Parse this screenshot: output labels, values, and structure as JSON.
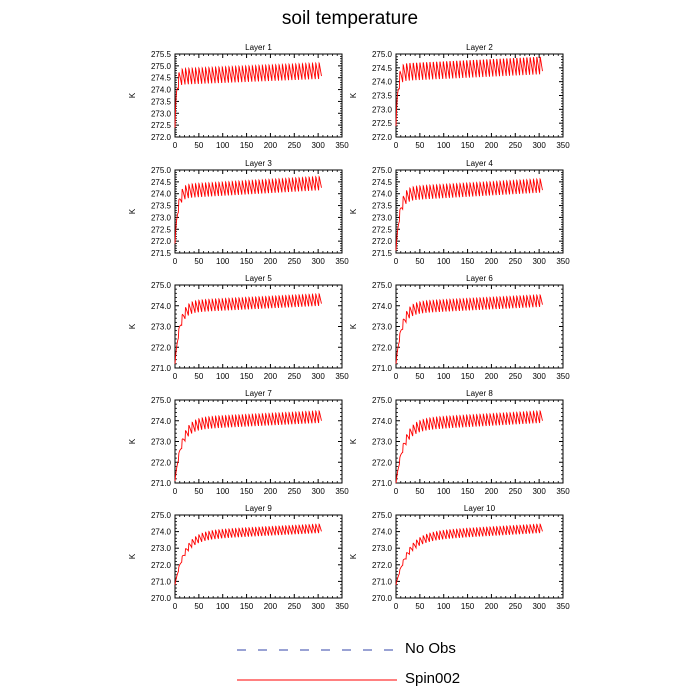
{
  "figure": {
    "title": "soil temperature"
  },
  "colors": {
    "spin002": "#ff0000",
    "no_obs": "#3344aa"
  },
  "legend": [
    {
      "label": "No Obs",
      "style": "dashed",
      "color": "#3344aa"
    },
    {
      "label": "Spin002",
      "style": "solid",
      "color": "#ff0000"
    }
  ],
  "chart_data": [
    {
      "type": "line",
      "title": "Layer 1",
      "ylabel": "K",
      "xlim": [
        0,
        350
      ],
      "ylim": [
        272.0,
        275.5
      ],
      "xticks": [
        "0",
        "50",
        "100",
        "150",
        "200",
        "250",
        "300",
        "350"
      ],
      "yticks": [
        "272.0",
        "272.5",
        "273.0",
        "273.5",
        "274.0",
        "274.5",
        "275.0",
        "275.5"
      ],
      "series": [
        {
          "style": "solid",
          "color": "#ff0000",
          "x_start": 0,
          "x_end": 307,
          "start_value": 272.4,
          "mean_start": 274.55,
          "mean_end": 274.8,
          "amplitude": 0.35,
          "period_days": 7,
          "tau_days": 3
        }
      ]
    },
    {
      "type": "line",
      "title": "Layer 2",
      "ylabel": "K",
      "xlim": [
        0,
        350
      ],
      "ylim": [
        272.0,
        275.0
      ],
      "xticks": [
        "0",
        "50",
        "100",
        "150",
        "200",
        "250",
        "300",
        "350"
      ],
      "yticks": [
        "272.0",
        "272.5",
        "273.0",
        "273.5",
        "274.0",
        "274.5",
        "275.0"
      ],
      "series": [
        {
          "style": "solid",
          "color": "#ff0000",
          "x_start": 0,
          "x_end": 307,
          "start_value": 272.4,
          "mean_start": 274.35,
          "mean_end": 274.6,
          "amplitude": 0.33,
          "period_days": 7,
          "tau_days": 4
        }
      ]
    },
    {
      "type": "line",
      "title": "Layer 3",
      "ylabel": "K",
      "xlim": [
        0,
        350
      ],
      "ylim": [
        271.5,
        275.0
      ],
      "xticks": [
        "0",
        "50",
        "100",
        "150",
        "200",
        "250",
        "300",
        "350"
      ],
      "yticks": [
        "271.5",
        "272.0",
        "272.5",
        "273.0",
        "273.5",
        "274.0",
        "274.5",
        "275.0"
      ],
      "series": [
        {
          "style": "solid",
          "color": "#ff0000",
          "x_start": 0,
          "x_end": 307,
          "start_value": 271.9,
          "mean_start": 274.1,
          "mean_end": 274.45,
          "amplitude": 0.3,
          "period_days": 7,
          "tau_days": 6
        }
      ]
    },
    {
      "type": "line",
      "title": "Layer 4",
      "ylabel": "K",
      "xlim": [
        0,
        350
      ],
      "ylim": [
        271.5,
        275.0
      ],
      "xticks": [
        "0",
        "50",
        "100",
        "150",
        "200",
        "250",
        "300",
        "350"
      ],
      "yticks": [
        "271.5",
        "272.0",
        "272.5",
        "273.0",
        "273.5",
        "274.0",
        "274.5",
        "275.0"
      ],
      "series": [
        {
          "style": "solid",
          "color": "#ff0000",
          "x_start": 0,
          "x_end": 307,
          "start_value": 271.6,
          "mean_start": 274.0,
          "mean_end": 274.35,
          "amplitude": 0.3,
          "period_days": 7,
          "tau_days": 8
        }
      ]
    },
    {
      "type": "line",
      "title": "Layer 5",
      "ylabel": "K",
      "xlim": [
        0,
        350
      ],
      "ylim": [
        271.0,
        275.0
      ],
      "xticks": [
        "0",
        "50",
        "100",
        "150",
        "200",
        "250",
        "300",
        "350"
      ],
      "yticks": [
        "271.0",
        "272.0",
        "273.0",
        "274.0",
        "275.0"
      ],
      "series": [
        {
          "style": "solid",
          "color": "#ff0000",
          "x_start": 0,
          "x_end": 307,
          "start_value": 271.2,
          "mean_start": 273.95,
          "mean_end": 274.3,
          "amplitude": 0.3,
          "period_days": 7,
          "tau_days": 10
        }
      ]
    },
    {
      "type": "line",
      "title": "Layer 6",
      "ylabel": "K",
      "xlim": [
        0,
        350
      ],
      "ylim": [
        271.0,
        275.0
      ],
      "xticks": [
        "0",
        "50",
        "100",
        "150",
        "200",
        "250",
        "300",
        "350"
      ],
      "yticks": [
        "271.0",
        "272.0",
        "273.0",
        "274.0",
        "275.0"
      ],
      "series": [
        {
          "style": "solid",
          "color": "#ff0000",
          "x_start": 0,
          "x_end": 307,
          "start_value": 271.2,
          "mean_start": 273.9,
          "mean_end": 274.25,
          "amplitude": 0.3,
          "period_days": 7,
          "tau_days": 12
        }
      ]
    },
    {
      "type": "line",
      "title": "Layer 7",
      "ylabel": "K",
      "xlim": [
        0,
        350
      ],
      "ylim": [
        271.0,
        275.0
      ],
      "xticks": [
        "0",
        "50",
        "100",
        "150",
        "200",
        "250",
        "300",
        "350"
      ],
      "yticks": [
        "271.0",
        "272.0",
        "273.0",
        "274.0",
        "275.0"
      ],
      "series": [
        {
          "style": "solid",
          "color": "#ff0000",
          "x_start": 0,
          "x_end": 307,
          "start_value": 271.1,
          "mean_start": 273.85,
          "mean_end": 274.2,
          "amplitude": 0.3,
          "period_days": 7,
          "tau_days": 14
        }
      ]
    },
    {
      "type": "line",
      "title": "Layer 8",
      "ylabel": "K",
      "xlim": [
        0,
        350
      ],
      "ylim": [
        271.0,
        275.0
      ],
      "xticks": [
        "0",
        "50",
        "100",
        "150",
        "200",
        "250",
        "300",
        "350"
      ],
      "yticks": [
        "271.0",
        "272.0",
        "273.0",
        "274.0",
        "275.0"
      ],
      "series": [
        {
          "style": "solid",
          "color": "#ff0000",
          "x_start": 0,
          "x_end": 307,
          "start_value": 271.0,
          "mean_start": 273.8,
          "mean_end": 274.2,
          "amplitude": 0.3,
          "period_days": 7,
          "tau_days": 16
        }
      ]
    },
    {
      "type": "line",
      "title": "Layer 9",
      "ylabel": "K",
      "xlim": [
        0,
        350
      ],
      "ylim": [
        270.0,
        275.0
      ],
      "xticks": [
        "0",
        "50",
        "100",
        "150",
        "200",
        "250",
        "300",
        "350"
      ],
      "yticks": [
        "270.0",
        "271.0",
        "272.0",
        "273.0",
        "274.0",
        "275.0"
      ],
      "series": [
        {
          "style": "solid",
          "color": "#ff0000",
          "x_start": 0,
          "x_end": 307,
          "start_value": 270.8,
          "mean_start": 273.75,
          "mean_end": 274.2,
          "amplitude": 0.28,
          "period_days": 7,
          "tau_days": 20
        }
      ]
    },
    {
      "type": "line",
      "title": "Layer 10",
      "ylabel": "K",
      "xlim": [
        0,
        350
      ],
      "ylim": [
        270.0,
        275.0
      ],
      "xticks": [
        "0",
        "50",
        "100",
        "150",
        "200",
        "250",
        "300",
        "350"
      ],
      "yticks": [
        "270.0",
        "271.0",
        "272.0",
        "273.0",
        "274.0",
        "275.0"
      ],
      "series": [
        {
          "style": "solid",
          "color": "#ff0000",
          "x_start": 0,
          "x_end": 307,
          "start_value": 270.8,
          "mean_start": 273.7,
          "mean_end": 274.2,
          "amplitude": 0.28,
          "period_days": 7,
          "tau_days": 24
        }
      ]
    }
  ]
}
